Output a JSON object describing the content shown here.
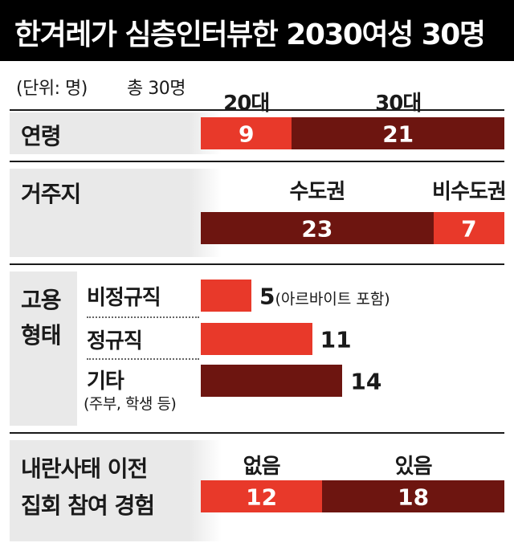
{
  "title": "한겨레가 심층인터뷰한 2030여성 30명",
  "unit": "(단위: 명)",
  "total": "총 30명",
  "colors": {
    "red": "#e8392a",
    "dark": "#6d1510",
    "panel": "#e9e9e9"
  },
  "chart_data": {
    "type": "bar",
    "stacking": "stacked-100",
    "scale_max": 30,
    "sections": [
      {
        "label": "연령",
        "headers": [
          "20대",
          "30대"
        ],
        "series": [
          {
            "name": "20대",
            "value": 9
          },
          {
            "name": "30대",
            "value": 21
          }
        ]
      },
      {
        "label": "거주지",
        "headers": [
          "수도권",
          "비수도권"
        ],
        "series": [
          {
            "name": "수도권",
            "value": 23
          },
          {
            "name": "비수도권",
            "value": 7
          }
        ]
      },
      {
        "label": "고용 형태",
        "categories": [
          {
            "name": "비정규직",
            "value": 5,
            "note": "(아르바이트 포함)"
          },
          {
            "name": "정규직",
            "value": 11
          },
          {
            "name": "기타",
            "value": 14,
            "note": "(주부, 학생 등)"
          }
        ]
      },
      {
        "label": "내란사태 이전 집회 참여 경험",
        "headers": [
          "없음",
          "있음"
        ],
        "series": [
          {
            "name": "없음",
            "value": 12
          },
          {
            "name": "있음",
            "value": 18
          }
        ]
      }
    ]
  },
  "display": {
    "age_label": "연령",
    "residence_label": "거주지",
    "employment_label_1": "고용",
    "employment_label_2": "형태",
    "rally_label_1": "내란사태 이전",
    "rally_label_2": "집회 참여 경험"
  }
}
